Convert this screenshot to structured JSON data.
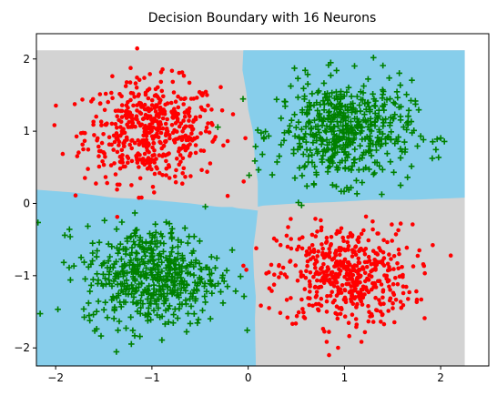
{
  "chart_data": {
    "type": "scatter",
    "title": "Decision Boundary with 16 Neurons",
    "xlabel": "",
    "ylabel": "",
    "xlim": [
      -2.2,
      2.5
    ],
    "ylim": [
      -2.25,
      2.35
    ],
    "grid": false,
    "x_ticks": [
      -2,
      -1,
      0,
      1,
      2
    ],
    "y_ticks": [
      -2,
      -1,
      0,
      1,
      2
    ],
    "x_tick_labels": [
      "−2",
      "−1",
      "0",
      "1",
      "2"
    ],
    "y_tick_labels": [
      "−2",
      "−1",
      "0",
      "1",
      "2"
    ],
    "boundary_extent": {
      "x": [
        -2.2,
        2.25
      ],
      "y": [
        -2.25,
        2.12
      ]
    },
    "regions": [
      {
        "class": "class_0",
        "color": "#d3d3d3",
        "description": "top-left and bottom-right quadrants"
      },
      {
        "class": "class_1",
        "color": "#87ceeb",
        "description": "top-right and bottom-left quadrants"
      }
    ],
    "boundary_x_line": [
      [
        2.12,
        -0.05
      ],
      [
        1.85,
        -0.06
      ],
      [
        1.55,
        -0.02
      ],
      [
        1.3,
        0.0
      ],
      [
        1.0,
        0.05
      ],
      [
        0.6,
        0.07
      ],
      [
        0.3,
        0.1
      ],
      [
        0.05,
        0.12
      ],
      [
        -0.1,
        0.1
      ],
      [
        -0.35,
        0.08
      ],
      [
        -0.65,
        0.05
      ],
      [
        -1.0,
        0.06
      ],
      [
        -1.3,
        0.08
      ],
      [
        -1.6,
        0.07
      ],
      [
        -2.25,
        0.08
      ]
    ],
    "boundary_y_line": [
      [
        -2.2,
        0.19
      ],
      [
        -1.8,
        0.15
      ],
      [
        -1.4,
        0.08
      ],
      [
        -1.0,
        0.05
      ],
      [
        -0.6,
        0.0
      ],
      [
        -0.3,
        -0.05
      ],
      [
        -0.15,
        -0.05
      ],
      [
        -0.1,
        -0.07
      ],
      [
        0.0,
        -0.08
      ],
      [
        0.15,
        -0.03
      ],
      [
        0.5,
        0.0
      ],
      [
        0.9,
        0.02
      ],
      [
        1.3,
        0.05
      ],
      [
        1.7,
        0.05
      ],
      [
        2.25,
        0.08
      ]
    ],
    "series": [
      {
        "marker": "circle",
        "color": "#ff0000",
        "clusters": [
          {
            "center": [
              -1.0,
              1.0
            ],
            "std": 0.35,
            "count": 520
          },
          {
            "center": [
              1.0,
              -1.0
            ],
            "std": 0.35,
            "count": 520
          }
        ]
      },
      {
        "marker": "plus",
        "color": "#008000",
        "clusters": [
          {
            "center": [
              1.0,
              1.0
            ],
            "std": 0.35,
            "count": 520
          },
          {
            "center": [
              -1.0,
              -1.0
            ],
            "std": 0.35,
            "count": 520
          }
        ]
      }
    ]
  }
}
